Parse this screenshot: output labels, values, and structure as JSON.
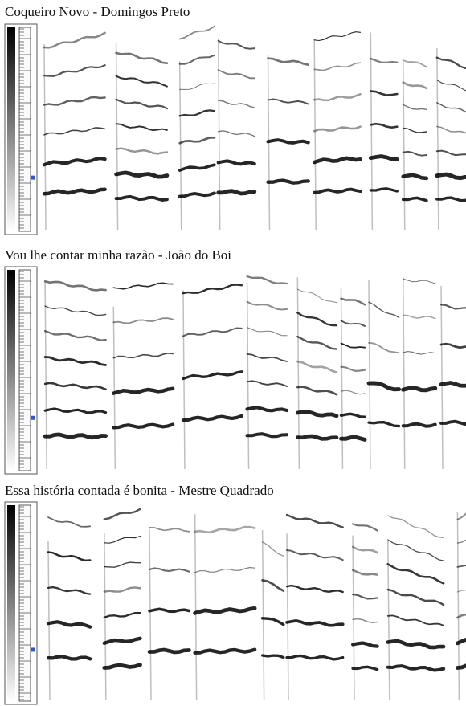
{
  "panels": [
    {
      "title": "Coqueiro Novo - Domingos Preto"
    },
    {
      "title": "Vou lhe contar minha razão - João do Boi"
    },
    {
      "title": "Essa história contada é bonita - Mestre Quadrado"
    }
  ]
}
